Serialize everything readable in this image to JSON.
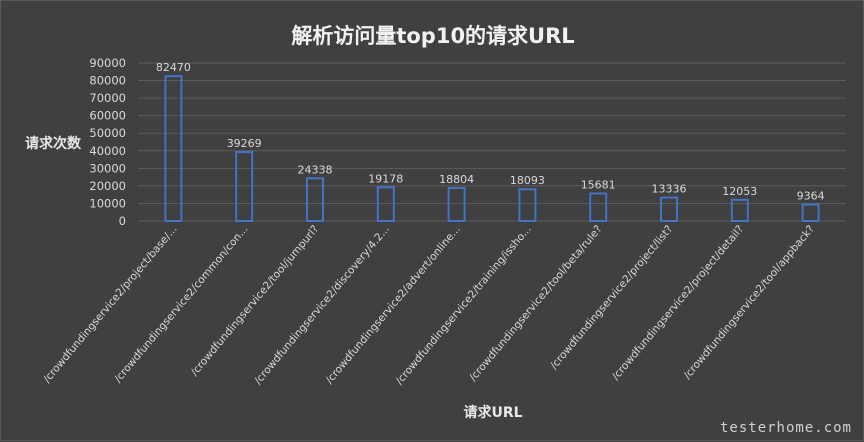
{
  "chart_data": {
    "type": "bar",
    "title": "解析访问量top10的请求URL",
    "xlabel": "请求URL",
    "ylabel": "请求次数",
    "ylim": [
      0,
      90000
    ],
    "yticks": [
      0,
      10000,
      20000,
      30000,
      40000,
      50000,
      60000,
      70000,
      80000,
      90000
    ],
    "grid": true,
    "legend": "none",
    "categories": [
      "/crowdfundingservice2/project/base/...",
      "/crowdfundingservice2/common/con...",
      "/crowdfundingservice2/tool/jumpurl?",
      "/crowdfundingservice2/discovery/4.2...",
      "/crowdfundingservice2/advert/online...",
      "/crowdfundingservice2/training/issho...",
      "/crowdfundingservice2/tool/beta/rule?",
      "/crowdfundingservice2/project/list?",
      "/crowdfundingservice2/project/detail?",
      "/crowdfundingservice2/tool/appback?"
    ],
    "values": [
      82470,
      39269,
      24338,
      19178,
      18804,
      18093,
      15681,
      13336,
      12053,
      9364
    ],
    "bar_color": "#4472c4",
    "background_color": "#404040"
  },
  "watermark": "testerhome.com"
}
